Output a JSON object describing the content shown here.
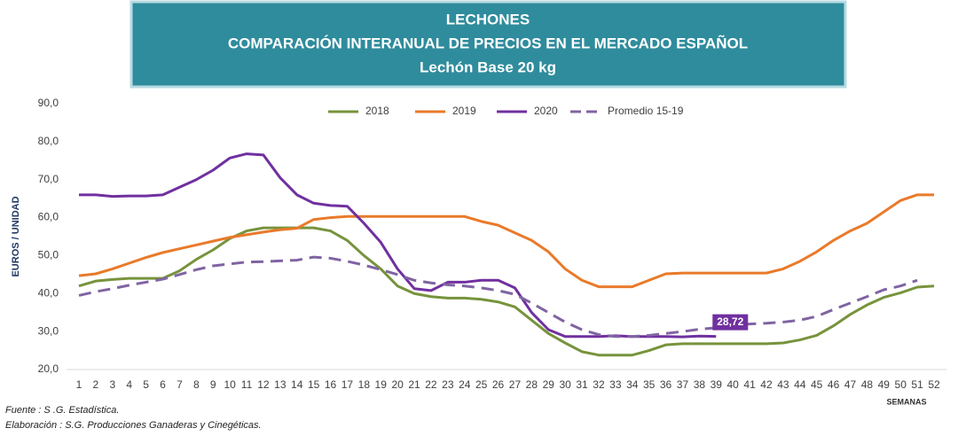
{
  "chart_data": {
    "type": "line",
    "title": [
      "LECHONES",
      "COMPARACIÓN INTERANUAL DE PRECIOS EN EL MERCADO ESPAÑOL",
      "Lechón Base 20 kg"
    ],
    "y_label": "EUROS / UNIDAD",
    "x_label": "SEMANAS",
    "x": [
      1,
      2,
      3,
      4,
      5,
      6,
      7,
      8,
      9,
      10,
      11,
      12,
      13,
      14,
      15,
      16,
      17,
      18,
      19,
      20,
      21,
      22,
      23,
      24,
      25,
      26,
      27,
      28,
      29,
      30,
      31,
      32,
      33,
      34,
      35,
      36,
      37,
      38,
      39,
      40,
      41,
      42,
      43,
      44,
      45,
      46,
      47,
      48,
      49,
      50,
      51,
      52
    ],
    "xlim": [
      1,
      52
    ],
    "xticks": [
      1,
      2,
      3,
      4,
      5,
      6,
      7,
      8,
      9,
      10,
      11,
      12,
      13,
      14,
      15,
      16,
      17,
      18,
      19,
      20,
      21,
      22,
      23,
      24,
      25,
      26,
      27,
      28,
      29,
      30,
      31,
      32,
      33,
      34,
      35,
      36,
      37,
      38,
      39,
      40,
      41,
      42,
      43,
      44,
      45,
      46,
      47,
      48,
      49,
      50,
      51,
      52
    ],
    "ylim": [
      20,
      90
    ],
    "yticks": [
      {
        "value": 20,
        "label": "20,0"
      },
      {
        "value": 30,
        "label": "30,0"
      },
      {
        "value": 40,
        "label": "40,0"
      },
      {
        "value": 50,
        "label": "50,0"
      },
      {
        "value": 60,
        "label": "60,0"
      },
      {
        "value": 70,
        "label": "70,0"
      },
      {
        "value": 80,
        "label": "80,0"
      },
      {
        "value": 90,
        "label": "90,0"
      }
    ],
    "grid": false,
    "legend": "top",
    "series": [
      {
        "name": "2018",
        "color": "#77933c",
        "dash": false,
        "values": [
          42,
          43.3,
          43.7,
          44,
          44,
          44,
          46,
          49,
          51.5,
          54.5,
          56.5,
          57.3,
          57.3,
          57.3,
          57.3,
          56.5,
          54,
          50,
          46.5,
          42,
          40,
          39.2,
          38.8,
          38.8,
          38.5,
          37.8,
          36.5,
          33,
          29.5,
          27,
          24.7,
          23.8,
          23.8,
          23.8,
          25,
          26.5,
          26.8,
          26.8,
          26.8,
          26.8,
          26.8,
          26.8,
          27,
          27.8,
          29,
          31.5,
          34.5,
          37,
          39,
          40.2,
          41.7,
          42
        ]
      },
      {
        "name": "2019",
        "color": "#e97a2a",
        "dash": false,
        "values": [
          44.7,
          45.2,
          46.5,
          48,
          49.5,
          50.8,
          51.8,
          52.8,
          53.8,
          54.8,
          55.5,
          56.2,
          56.8,
          57.2,
          59.5,
          60,
          60.3,
          60.3,
          60.3,
          60.3,
          60.3,
          60.3,
          60.3,
          60.3,
          59,
          58,
          56,
          54,
          51,
          46.5,
          43.5,
          41.8,
          41.8,
          41.8,
          43.5,
          45.2,
          45.4,
          45.4,
          45.4,
          45.4,
          45.4,
          45.4,
          46.5,
          48.5,
          51,
          54,
          56.5,
          58.5,
          61.5,
          64.5,
          66,
          66
        ]
      },
      {
        "name": "2020",
        "color": "#7030a0",
        "dash": false,
        "values": [
          66,
          66,
          65.6,
          65.7,
          65.7,
          66,
          68,
          70,
          72.5,
          75.7,
          76.8,
          76.5,
          70.5,
          66,
          63.8,
          63.2,
          63,
          58.5,
          53.5,
          46.5,
          41.3,
          40.8,
          43,
          43,
          43.5,
          43.5,
          41.5,
          35,
          30.5,
          28.7,
          28.7,
          28.7,
          28.9,
          28.7,
          28.7,
          28.7,
          28.6,
          28.8,
          28.72,
          null,
          null,
          null,
          null,
          null,
          null,
          null,
          null,
          null,
          null,
          null,
          null,
          null
        ]
      },
      {
        "name": "Promedio 15-19",
        "color": "#8064a2",
        "dash": true,
        "values": [
          39.5,
          40.5,
          41.3,
          42.2,
          43,
          43.8,
          45,
          46.3,
          47.3,
          47.8,
          48.3,
          48.4,
          48.6,
          48.8,
          49.6,
          49.3,
          48.5,
          47.5,
          46.3,
          45,
          43.5,
          42.8,
          42.3,
          42,
          41.5,
          40.8,
          39.8,
          37.5,
          35,
          32.5,
          30.5,
          29.2,
          28.7,
          28.7,
          29,
          29.5,
          30,
          30.6,
          31,
          31.5,
          32,
          32.2,
          32.5,
          33,
          34,
          35.8,
          37.5,
          39.2,
          41,
          42,
          43.5,
          null
        ]
      }
    ],
    "annotation": {
      "x": 39,
      "y": 28.72,
      "label": "28,72",
      "color": "#7030a0"
    },
    "footnotes": [
      "Fuente :  S .G. Estadística.",
      "Elaboración : S.G. Producciones Ganaderas y Cinegéticas."
    ]
  }
}
